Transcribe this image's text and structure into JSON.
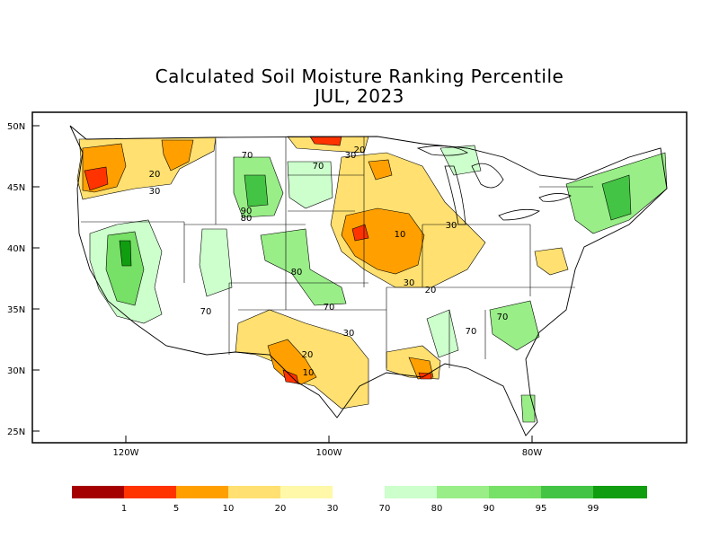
{
  "title": {
    "line1": "Calculated Soil Moisture Ranking Percentile",
    "line2": "JUL, 2023"
  },
  "axes": {
    "lat_labels": [
      "50N",
      "45N",
      "40N",
      "35N",
      "30N",
      "25N"
    ],
    "lon_labels": [
      "120W",
      "100W",
      "80W"
    ]
  },
  "contour_labels": [
    "20",
    "30",
    "70",
    "70",
    "90",
    "80",
    "30",
    "20",
    "10",
    "30",
    "80",
    "70",
    "30",
    "20",
    "70",
    "70",
    "70",
    "20",
    "10",
    "30"
  ],
  "legend": {
    "dry_colors": [
      "#a50000",
      "#ff3300",
      "#ffa000",
      "#ffe070",
      "#fff8a8"
    ],
    "wet_colors": [
      "#ccffcc",
      "#99ee88",
      "#77e066",
      "#44c444",
      "#109e10"
    ],
    "labels": [
      "1",
      "5",
      "10",
      "20",
      "30",
      "70",
      "80",
      "90",
      "95",
      "99"
    ]
  }
}
